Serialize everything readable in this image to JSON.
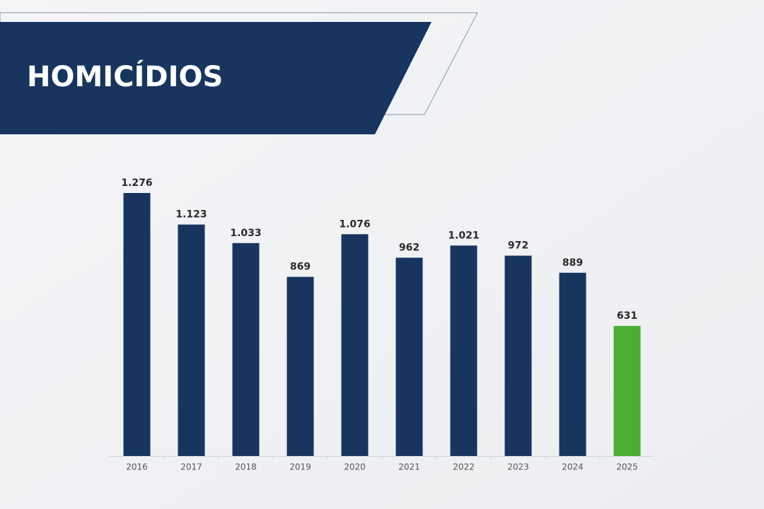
{
  "chart_data": {
    "type": "bar",
    "title": "HOMICÍDIOS",
    "categories": [
      "2016",
      "2017",
      "2018",
      "2019",
      "2020",
      "2021",
      "2022",
      "2023",
      "2024",
      "2025"
    ],
    "values": [
      1276,
      1123,
      1033,
      869,
      1076,
      962,
      1021,
      972,
      889,
      631
    ],
    "value_labels": [
      "1.276",
      "1.123",
      "1.033",
      "869",
      "1.076",
      "962",
      "1.021",
      "972",
      "889",
      "631"
    ],
    "colors": [
      "#17355f",
      "#17355f",
      "#17355f",
      "#17355f",
      "#17355f",
      "#17355f",
      "#17355f",
      "#17355f",
      "#17355f",
      "#4cae34"
    ]
  }
}
